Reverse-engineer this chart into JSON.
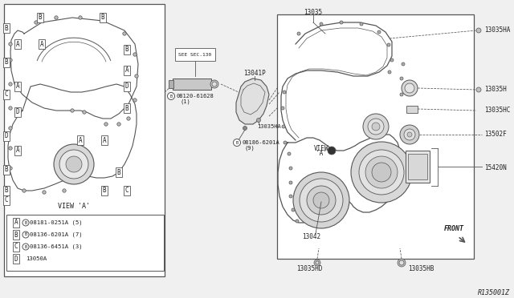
{
  "bg_color": "#f0f0f0",
  "line_color": "#555555",
  "text_color": "#222222",
  "box_color": "#ffffff",
  "diagram_number": "R135001Z",
  "legend": {
    "A": "08181-0251A (5)",
    "B": "08136-6201A (7)",
    "C": "08136-6451A (3)",
    "D": "13050A"
  }
}
